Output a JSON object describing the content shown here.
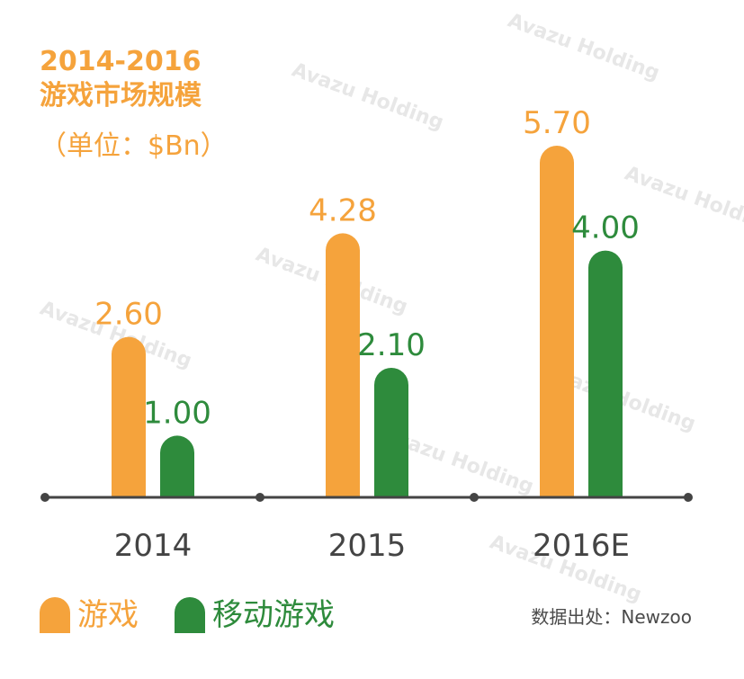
{
  "chart_data": {
    "type": "bar",
    "title_line1": "2014-2016",
    "title_line2": "游戏市场规模",
    "subtitle": "（单位：$Bn）",
    "categories": [
      "2014",
      "2015",
      "2016E"
    ],
    "series": [
      {
        "name": "游戏",
        "color": "#f5a33c",
        "values": [
          2.6,
          4.28,
          5.7
        ],
        "labels": [
          "2.60",
          "4.28",
          "5.70"
        ]
      },
      {
        "name": "移动游戏",
        "color": "#2e8b3c",
        "values": [
          1.0,
          2.1,
          4.0
        ],
        "labels": [
          "1.00",
          "2.10",
          "4.00"
        ]
      }
    ],
    "ylim": [
      0,
      5.7
    ],
    "grid": false,
    "legend_position": "bottom-left"
  },
  "source": "数据出处：Newzoo",
  "watermark": "Avazu Holding",
  "colors": {
    "axis": "#444444",
    "tick_label": "#444444"
  }
}
